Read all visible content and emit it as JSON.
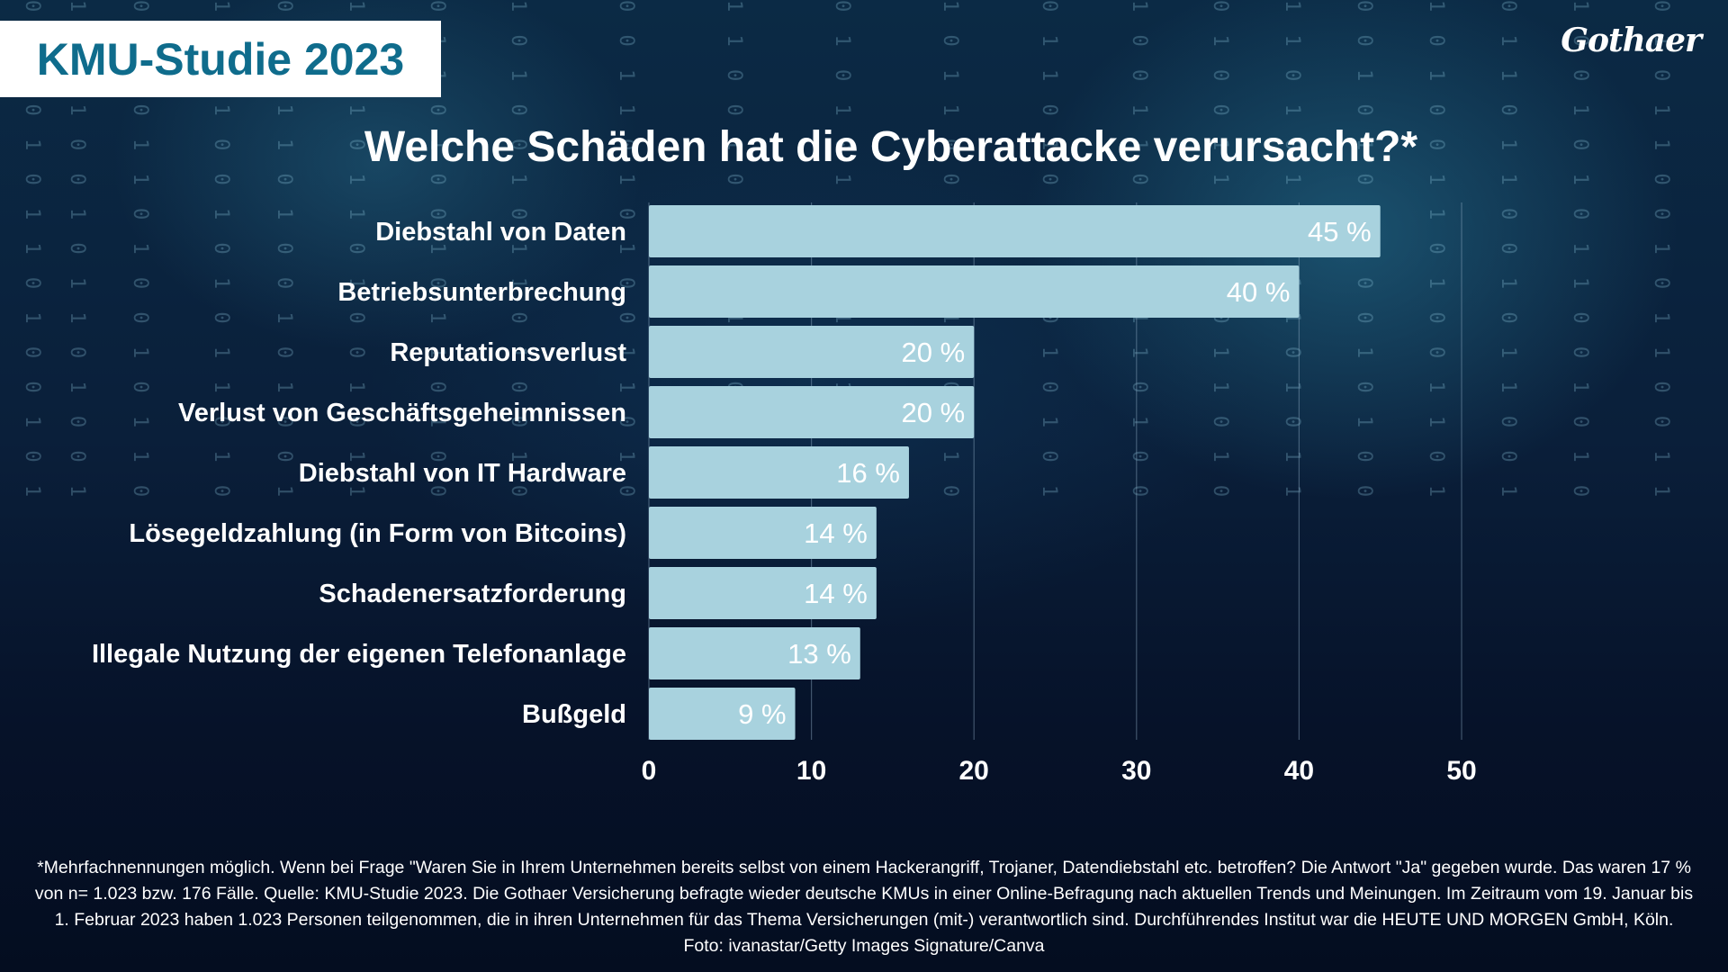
{
  "header": {
    "study_title": "KMU-Studie 2023",
    "logo_text": "Gothaer"
  },
  "chart_data": {
    "type": "bar",
    "orientation": "horizontal",
    "title": "Welche Schäden hat die Cyberattacke verursacht?*",
    "categories": [
      "Diebstahl von Daten",
      "Betriebsunterbrechung",
      "Reputationsverlust",
      "Verlust von Geschäftsgeheimnissen",
      "Diebstahl von IT Hardware",
      "Lösegeldzahlung (in Form von Bitcoins)",
      "Schadenersatzforderung",
      "Illegale Nutzung der eigenen Telefonanlage",
      "Bußgeld"
    ],
    "values": [
      45,
      40,
      20,
      20,
      16,
      14,
      14,
      13,
      9
    ],
    "value_labels": [
      "45 %",
      "40 %",
      "20 %",
      "20 %",
      "16 %",
      "14 %",
      "14 %",
      "13 %",
      "9 %"
    ],
    "xlim": [
      0,
      50
    ],
    "xticks": [
      "0",
      "10",
      "20",
      "30",
      "40",
      "50"
    ],
    "grid": true,
    "xlabel": "",
    "ylabel": "",
    "colors": {
      "bar": "#a8d2de",
      "grid": "#8aa6bf",
      "text": "#ffffff"
    }
  },
  "footnote": {
    "line1": "*Mehrfachnennungen möglich. Wenn bei Frage \"Waren Sie in Ihrem Unternehmen bereits selbst von einem Hackerangriff, Trojaner, Datendiebstahl etc. betroffen? Die Antwort \"Ja\" gegeben wurde. Das waren 17 %",
    "line2": "von n= 1.023 bzw. 176 Fälle. Quelle: KMU-Studie 2023. Die Gothaer Versicherung befragte wieder deutsche KMUs in einer Online-Befragung nach aktuellen Trends und Meinungen. Im Zeitraum vom 19. Januar bis",
    "line3": "1. Februar 2023 haben 1.023 Personen teilgenommen, die in ihren Unternehmen für das Thema Versicherungen (mit-) verantwortlich sind. Durchführendes Institut war die HEUTE UND MORGEN GmbH, Köln.",
    "photo_credit": "Foto: ivanastar/Getty Images Signature/Canva"
  }
}
